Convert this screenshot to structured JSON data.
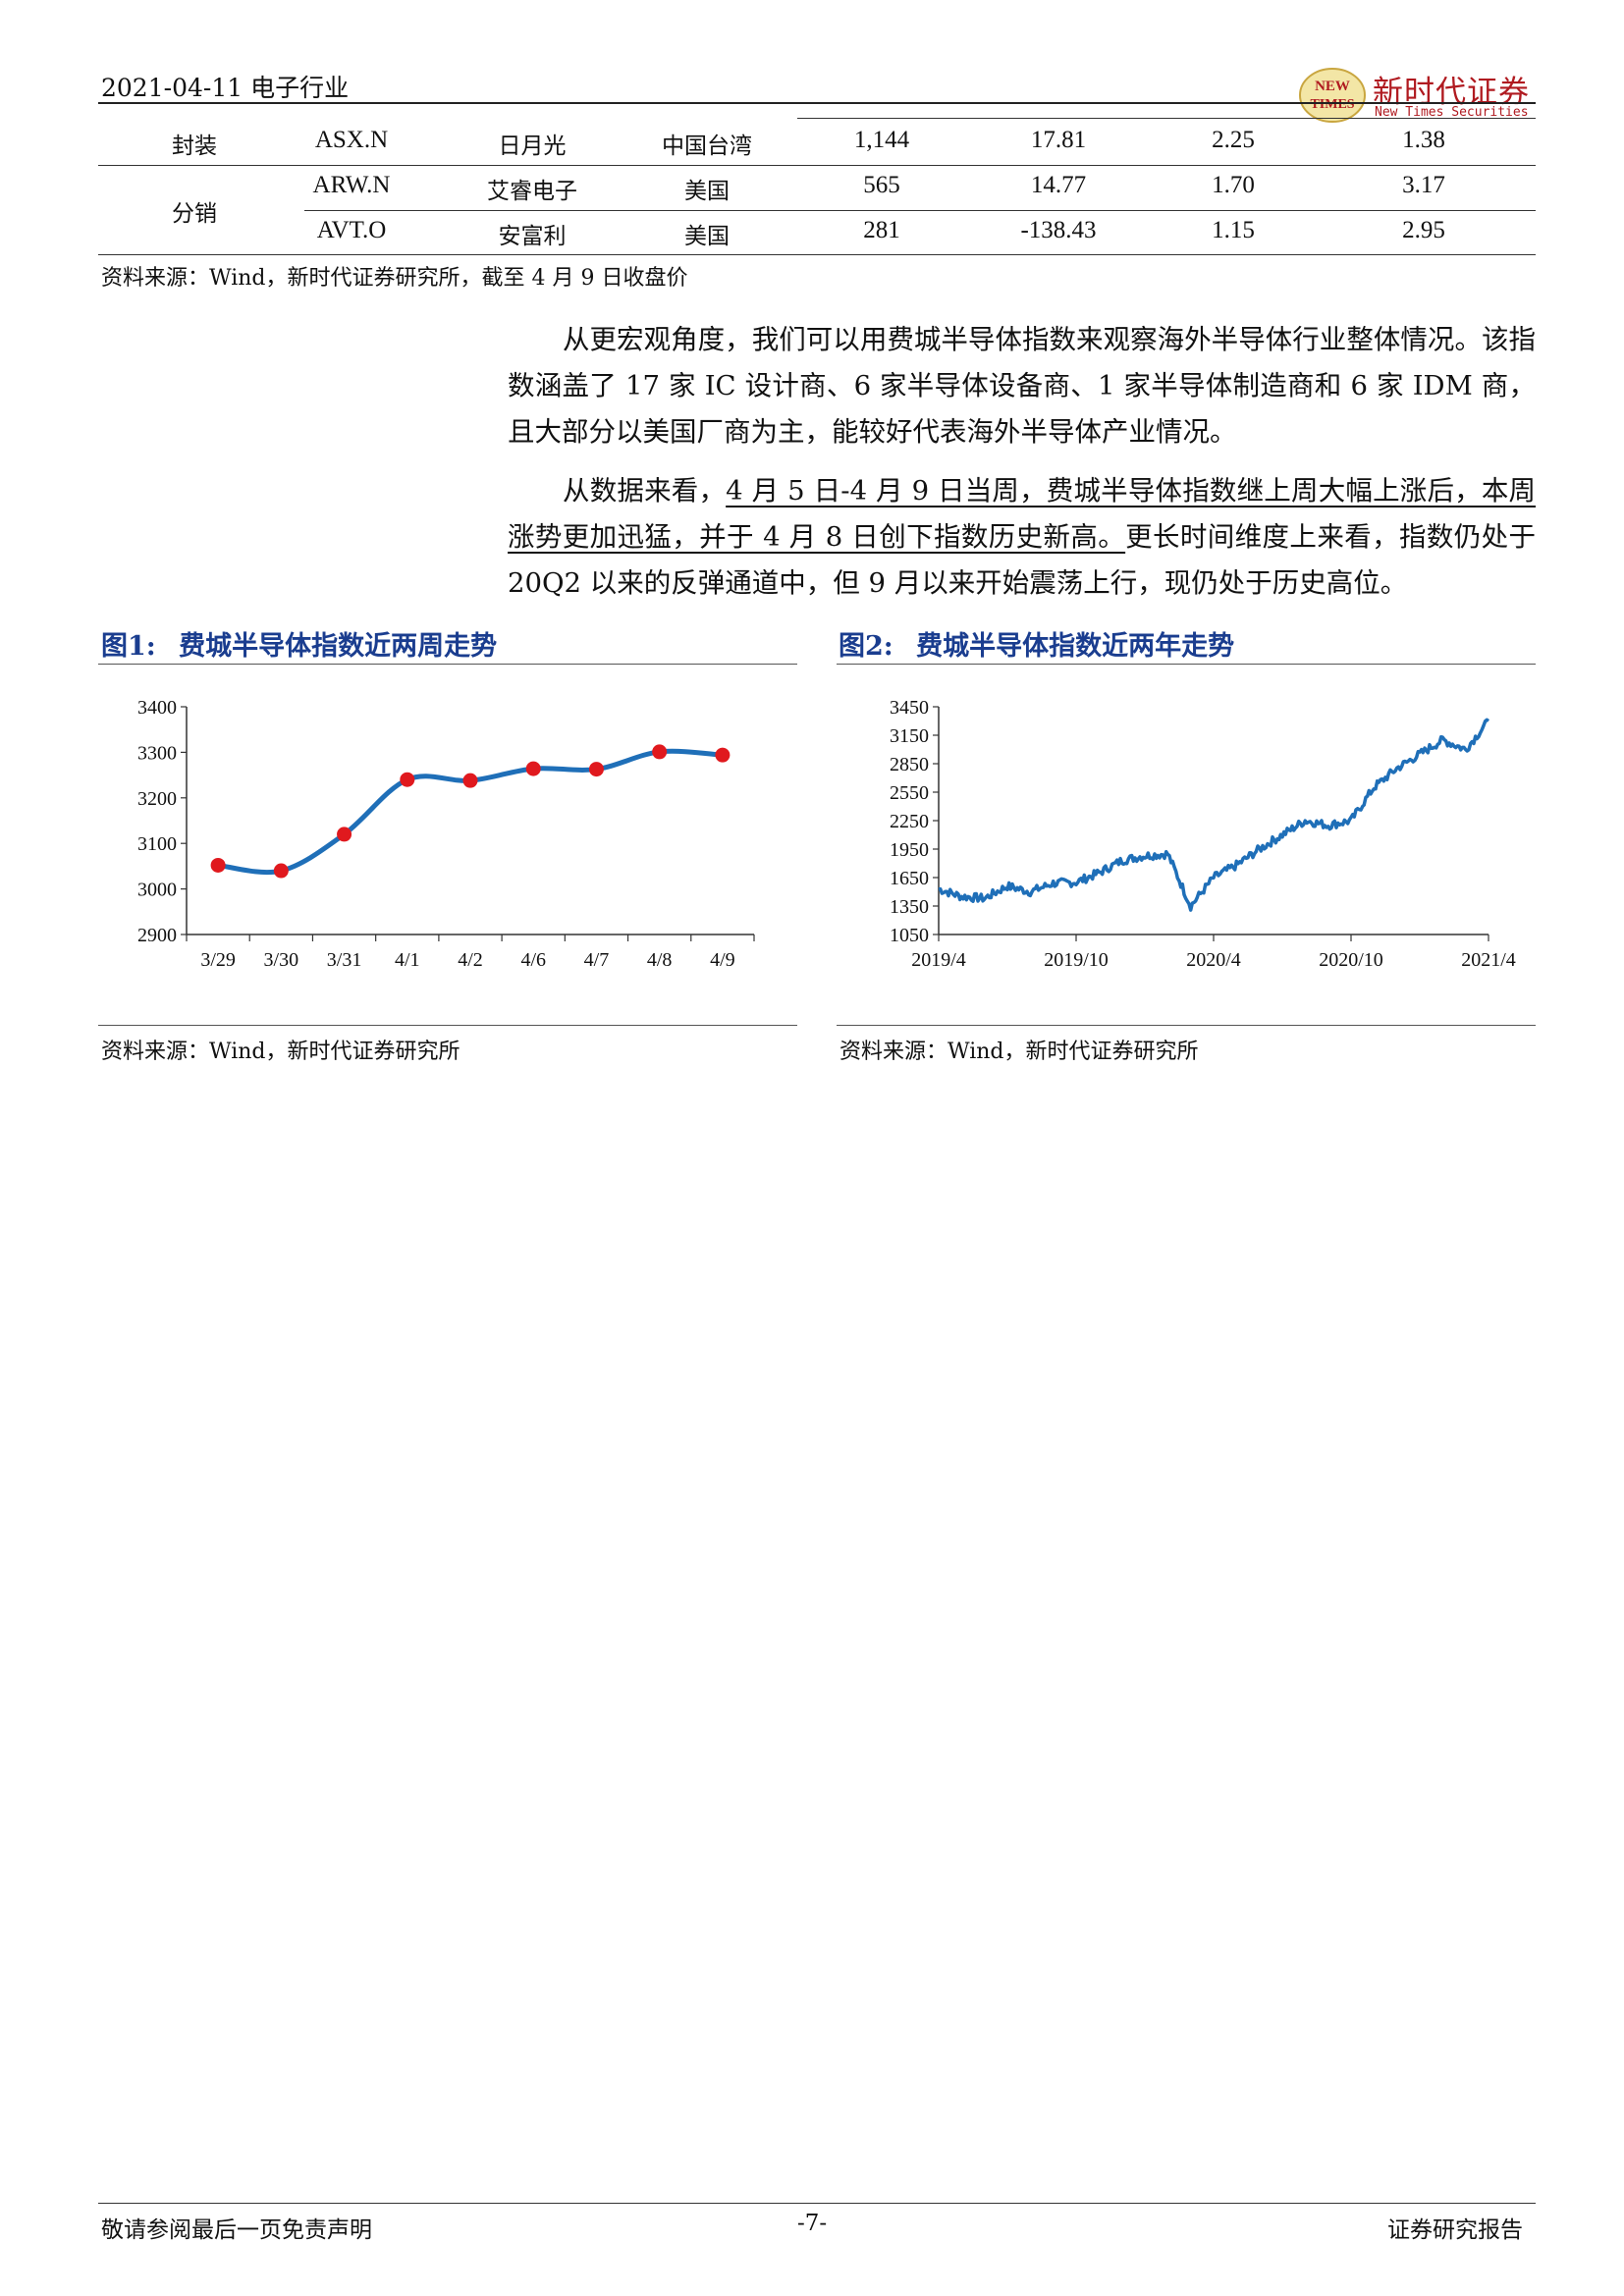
{
  "header": {
    "date_industry": "2021-04-11 电子行业",
    "logo_cn": "新时代证券",
    "logo_en": "New Times Securities",
    "logo_emblem": "NEW TIMES"
  },
  "table": {
    "rows": [
      {
        "segment": "封装",
        "ticker": "ASX.N",
        "name": "日月光",
        "region": "中国台湾",
        "v1": "1,144",
        "v2": "17.81",
        "v3": "2.25",
        "v4": "1.38"
      },
      {
        "segment": "分销",
        "ticker": "ARW.N",
        "name": "艾睿电子",
        "region": "美国",
        "v1": "565",
        "v2": "14.77",
        "v3": "1.70",
        "v4": "3.17"
      },
      {
        "segment": "",
        "ticker": "AVT.O",
        "name": "安富利",
        "region": "美国",
        "v1": "281",
        "v2": "-138.43",
        "v3": "1.15",
        "v4": "2.95"
      }
    ],
    "source": "资料来源：Wind，新时代证券研究所，截至 4 月 9 日收盘价"
  },
  "body": {
    "p1": "从更宏观角度，我们可以用费城半导体指数来观察海外半导体行业整体情况。该指数涵盖了 17 家 IC 设计商、6 家半导体设备商、1 家半导体制造商和 6 家 IDM 商，且大部分以美国厂商为主，能较好代表海外半导体产业情况。",
    "p2_a": "从数据来看，",
    "p2_u": "4 月 5 日-4 月 9 日当周，费城半导体指数继上周大幅上涨后，本周涨势更加迅猛，并于 4 月 8 日创下指数历史新高。",
    "p2_b": "更长时间维度上来看，指数仍处于 20Q2 以来的反弹通道中，但 9 月以来开始震荡上行，现仍处于历史高位。"
  },
  "figures": {
    "fig1": {
      "label": "图1:",
      "title": "费城半导体指数近两周走势",
      "source": "资料来源：Wind，新时代证券研究所"
    },
    "fig2": {
      "label": "图2:",
      "title": "费城半导体指数近两年走势",
      "source": "资料来源：Wind，新时代证券研究所"
    }
  },
  "chart_data": [
    {
      "type": "line",
      "title": "费城半导体指数近两周走势",
      "categories": [
        "3/29",
        "3/30",
        "3/31",
        "4/1",
        "4/2",
        "4/6",
        "4/7",
        "4/8",
        "4/9"
      ],
      "values": [
        3052,
        3040,
        3120,
        3240,
        3238,
        3264,
        3263,
        3301,
        3294
      ],
      "ylim": [
        2900,
        3400
      ],
      "yticks": [
        2900,
        3000,
        3100,
        3200,
        3300,
        3400
      ],
      "line_color": "#1f6fb8",
      "marker_color": "#e0191e",
      "smooth": true,
      "grid": false,
      "legend": "none"
    },
    {
      "type": "line",
      "title": "费城半导体指数近两年走势",
      "x_tick_labels": [
        "2019/4",
        "2019/10",
        "2020/4",
        "2020/10",
        "2021/4"
      ],
      "x_months": [
        "2019-04",
        "2019-05",
        "2019-06",
        "2019-07",
        "2019-08",
        "2019-09",
        "2019-10",
        "2019-11",
        "2019-12",
        "2020-01",
        "2020-02",
        "2020-03",
        "2020-04",
        "2020-05",
        "2020-06",
        "2020-07",
        "2020-08",
        "2020-09",
        "2020-10",
        "2020-11",
        "2020-12",
        "2021-01",
        "2021-02",
        "2021-03",
        "2021-04"
      ],
      "values": [
        1530,
        1450,
        1430,
        1560,
        1500,
        1590,
        1600,
        1700,
        1830,
        1880,
        1900,
        1350,
        1650,
        1780,
        1950,
        2100,
        2250,
        2200,
        2250,
        2600,
        2800,
        2950,
        3100,
        3000,
        3300
      ],
      "ylim": [
        1050,
        3450
      ],
      "yticks": [
        1050,
        1350,
        1650,
        1950,
        2250,
        2550,
        2850,
        3150,
        3450
      ],
      "line_color": "#1f6fb8",
      "grid": false,
      "legend": "none"
    }
  ],
  "footer": {
    "left": "敬请参阅最后一页免责声明",
    "center": "-7-",
    "right": "证券研究报告"
  }
}
